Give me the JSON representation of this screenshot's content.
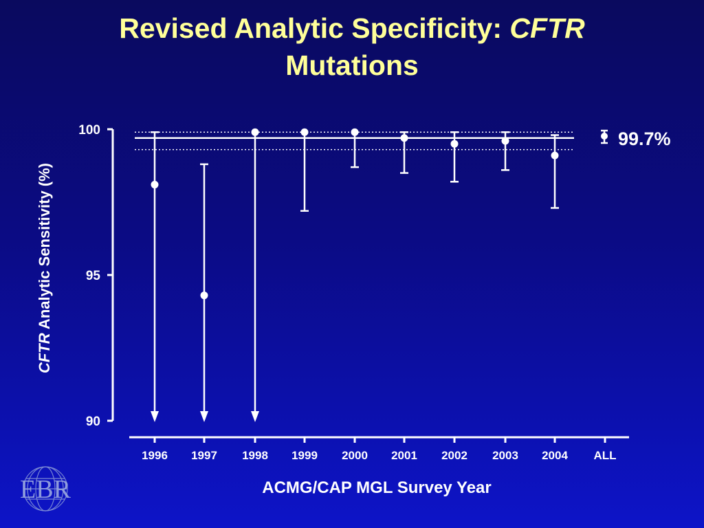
{
  "title": {
    "text": "Revised Analytic Specificity: ",
    "italic": "CFTR",
    "line2": "Mutations"
  },
  "logo": {
    "text": "EBR"
  },
  "chart_data": {
    "type": "scatter",
    "title": "Revised Analytic Specificity: CFTR Mutations",
    "ylabel_italic": "CFTR",
    "ylabel_rest": " Analytic Sensitivity (%)",
    "xlabel": "ACMG/CAP MGL Survey Year",
    "categories": [
      "1996",
      "1997",
      "1998",
      "1999",
      "2000",
      "2001",
      "2002",
      "2003",
      "2004",
      "ALL"
    ],
    "points": [
      {
        "x": "1996",
        "y": 98.1,
        "lower": 90,
        "upper": 99.9,
        "lower_arrow": true
      },
      {
        "x": "1997",
        "y": 94.3,
        "lower": 90,
        "upper": 98.8,
        "lower_arrow": true
      },
      {
        "x": "1998",
        "y": 99.9,
        "lower": 90,
        "upper": null,
        "lower_arrow": true
      },
      {
        "x": "1999",
        "y": 99.9,
        "lower": 97.2,
        "upper": null,
        "lower_arrow": false
      },
      {
        "x": "2000",
        "y": 99.9,
        "lower": 98.7,
        "upper": null,
        "lower_arrow": false
      },
      {
        "x": "2001",
        "y": 99.7,
        "lower": 98.5,
        "upper": 99.9,
        "lower_arrow": false
      },
      {
        "x": "2002",
        "y": 99.5,
        "lower": 98.2,
        "upper": 99.9,
        "lower_arrow": false
      },
      {
        "x": "2003",
        "y": 99.6,
        "lower": 98.6,
        "upper": 99.9,
        "lower_arrow": false
      },
      {
        "x": "2004",
        "y": 99.1,
        "lower": 97.3,
        "upper": 99.8,
        "lower_arrow": false
      }
    ],
    "overall": {
      "value": 99.7,
      "ci_lower": 99.3,
      "ci_upper": 99.9
    },
    "legend_label": "99.7%",
    "yticks": [
      90,
      95,
      100
    ],
    "ylim": [
      90,
      100
    ],
    "colors": {
      "line": "#ffffff",
      "marker": "#ffffff",
      "title": "#ffff99"
    }
  }
}
